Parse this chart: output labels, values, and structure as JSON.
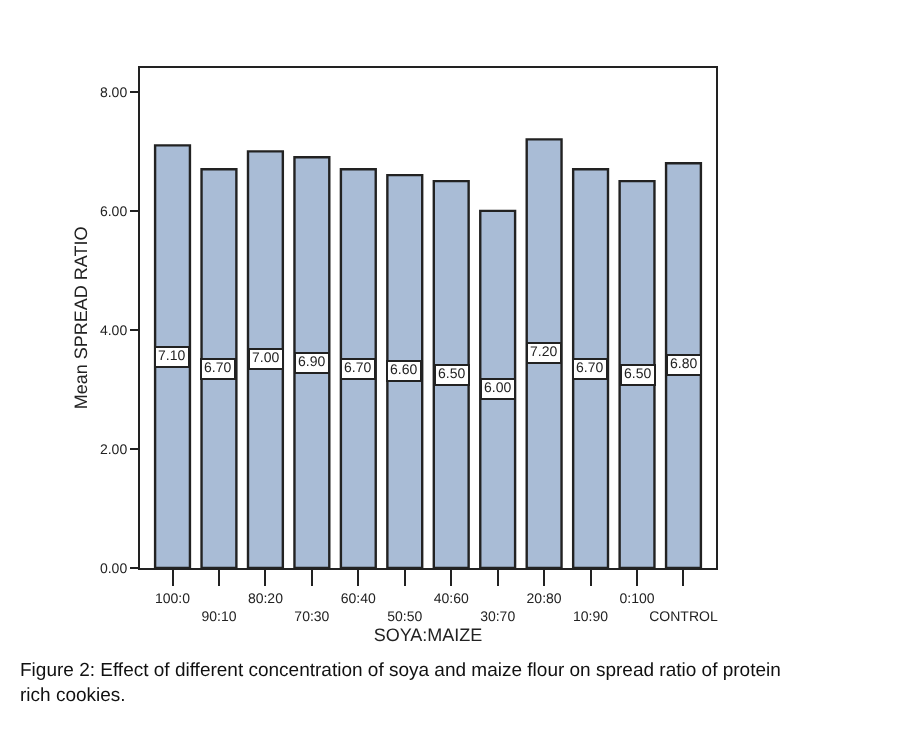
{
  "chart_data": {
    "type": "bar",
    "xlabel": "SOYA:MAIZE",
    "ylabel": "Mean SPREAD RATIO",
    "categories": [
      "100:0",
      "90:10",
      "80:20",
      "70:30",
      "60:40",
      "50:50",
      "40:60",
      "30:70",
      "20:80",
      "10:90",
      "0:100",
      "CONTROL"
    ],
    "values": [
      7.1,
      6.7,
      7.0,
      6.9,
      6.7,
      6.6,
      6.5,
      6.0,
      7.2,
      6.7,
      6.5,
      6.8
    ],
    "value_labels": [
      "7.10",
      "6.70",
      "7.00",
      "6.90",
      "6.70",
      "6.60",
      "6.50",
      "6.00",
      "7.20",
      "6.70",
      "6.50",
      "6.80"
    ],
    "color": "#a9bcd6",
    "ylim": [
      0,
      8.4
    ],
    "yticks": [
      {
        "value": 0,
        "label": "0.00"
      },
      {
        "value": 2,
        "label": "2.00"
      },
      {
        "value": 4,
        "label": "4.00"
      },
      {
        "value": 6,
        "label": "6.00"
      },
      {
        "value": 8,
        "label": "8.00"
      }
    ],
    "legend": false,
    "annotations": [
      "Figure 2: Effect of different concentration of soya and maize flour on spread ratio of protein rich cookies."
    ]
  }
}
